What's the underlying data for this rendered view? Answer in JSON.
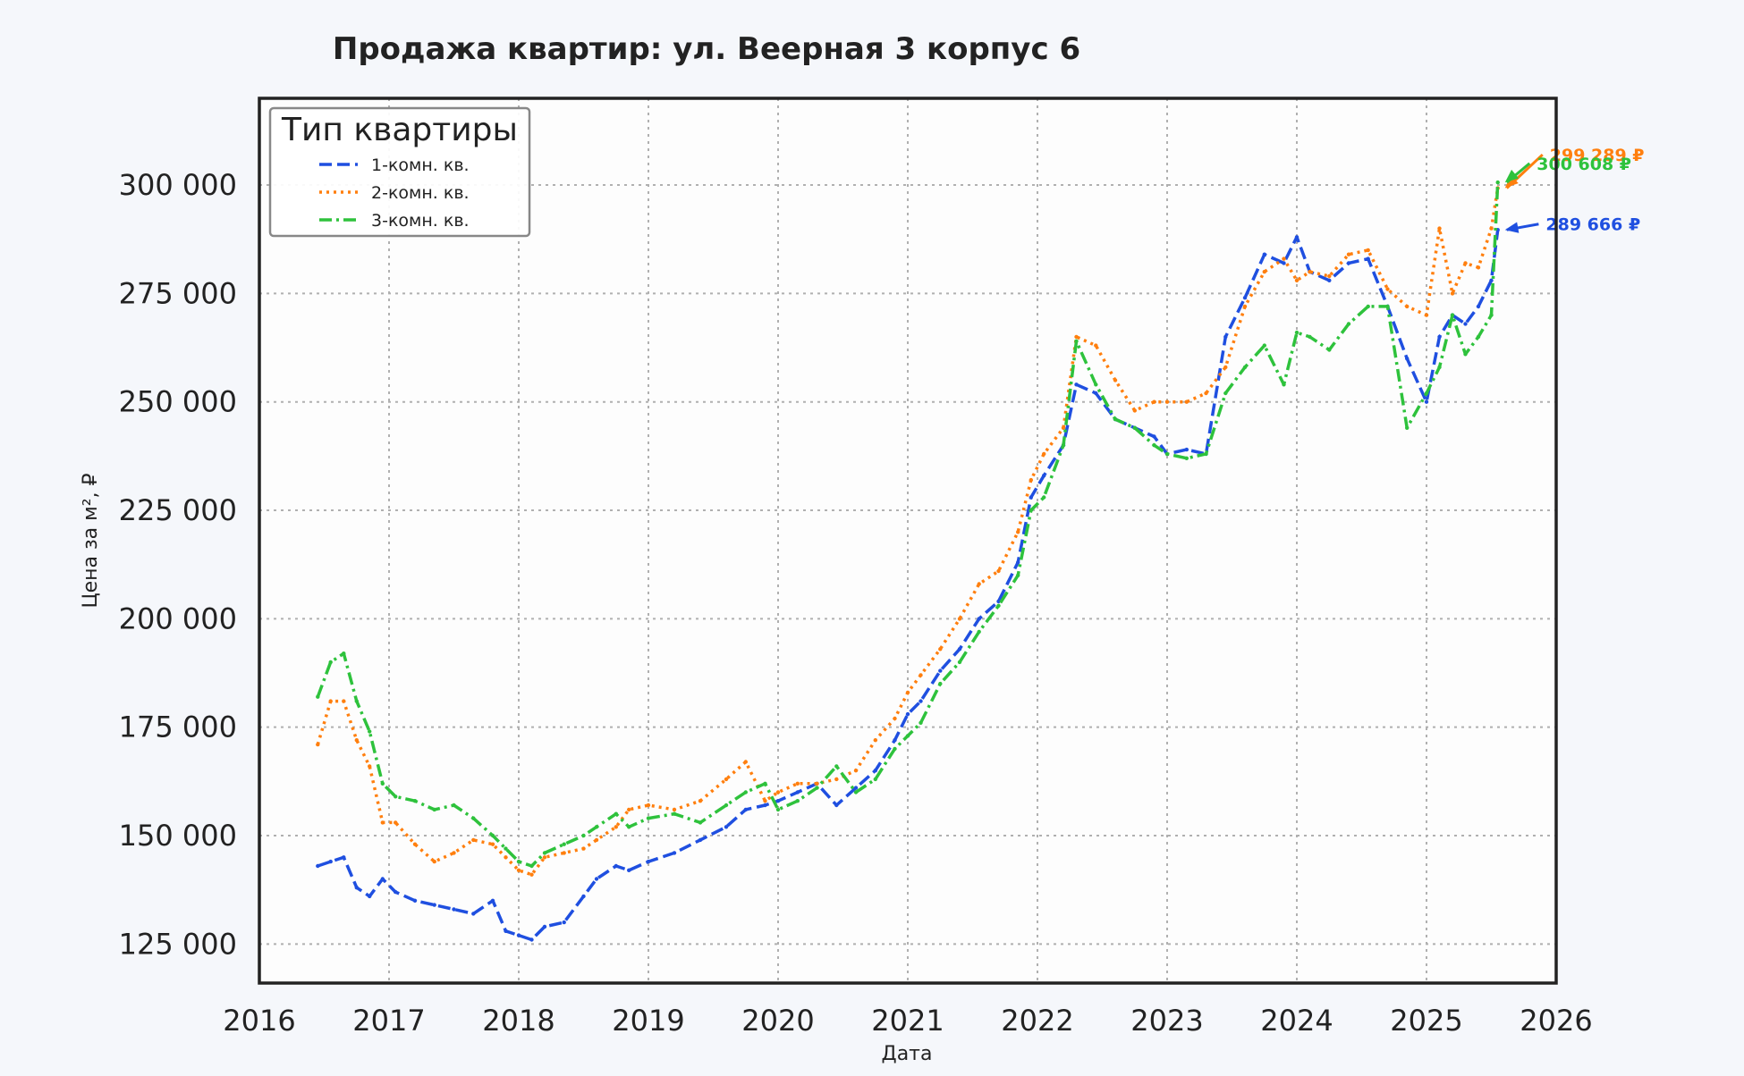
{
  "chart_data": {
    "type": "line",
    "title": "Продажа квартир: ул. Веерная 3 корпус 6",
    "xlabel": "Дата",
    "ylabel": "Цена за м², ₽",
    "xlim": [
      2016.0,
      2026.0
    ],
    "ylim": [
      116000,
      320000
    ],
    "x_ticks": [
      "2016",
      "2017",
      "2018",
      "2019",
      "2020",
      "2021",
      "2022",
      "2023",
      "2024",
      "2025",
      "2026"
    ],
    "y_ticks": [
      "125 000",
      "150 000",
      "175 000",
      "200 000",
      "225 000",
      "250 000",
      "275 000",
      "300 000"
    ],
    "y_tick_values": [
      125000,
      150000,
      175000,
      200000,
      225000,
      250000,
      275000,
      300000
    ],
    "grid": true,
    "legend": {
      "title": "Тип квартиры",
      "position": "top-left"
    },
    "series": [
      {
        "name": "1-комн. кв.",
        "color": "#1f4fe0",
        "dash": "dashed",
        "x": [
          2016.45,
          2016.55,
          2016.65,
          2016.75,
          2016.85,
          2016.95,
          2017.05,
          2017.2,
          2017.35,
          2017.5,
          2017.65,
          2017.8,
          2017.9,
          2018.0,
          2018.1,
          2018.2,
          2018.35,
          2018.5,
          2018.6,
          2018.75,
          2018.85,
          2019.0,
          2019.2,
          2019.4,
          2019.6,
          2019.75,
          2019.9,
          2020.0,
          2020.15,
          2020.3,
          2020.45,
          2020.6,
          2020.75,
          2020.9,
          2021.0,
          2021.1,
          2021.25,
          2021.4,
          2021.55,
          2021.7,
          2021.85,
          2021.95,
          2022.05,
          2022.2,
          2022.3,
          2022.45,
          2022.6,
          2022.75,
          2022.9,
          2023.0,
          2023.15,
          2023.3,
          2023.45,
          2023.6,
          2023.75,
          2023.9,
          2024.0,
          2024.1,
          2024.25,
          2024.4,
          2024.55,
          2024.7,
          2024.85,
          2025.0,
          2025.1,
          2025.2,
          2025.3,
          2025.4,
          2025.5,
          2025.55
        ],
        "y": [
          143000,
          144000,
          145000,
          138000,
          136000,
          140000,
          137000,
          135000,
          134000,
          133000,
          132000,
          135000,
          128000,
          127000,
          126000,
          129000,
          130000,
          136000,
          140000,
          143000,
          142000,
          144000,
          146000,
          149000,
          152000,
          156000,
          157000,
          158000,
          160000,
          162000,
          157000,
          161000,
          165000,
          172000,
          178000,
          181000,
          188000,
          193000,
          200000,
          204000,
          213000,
          228000,
          233000,
          240000,
          254000,
          252000,
          246000,
          244000,
          242000,
          238000,
          239000,
          238000,
          265000,
          274000,
          284000,
          282000,
          288000,
          280000,
          278000,
          282000,
          283000,
          272000,
          260000,
          250000,
          265000,
          270000,
          268000,
          272000,
          278000,
          289666
        ]
      },
      {
        "name": "2-комн. кв.",
        "color": "#ff7f0e",
        "dash": "dotted",
        "x": [
          2016.45,
          2016.55,
          2016.65,
          2016.75,
          2016.85,
          2016.95,
          2017.05,
          2017.2,
          2017.35,
          2017.5,
          2017.65,
          2017.8,
          2017.9,
          2018.0,
          2018.1,
          2018.2,
          2018.35,
          2018.5,
          2018.6,
          2018.75,
          2018.85,
          2019.0,
          2019.2,
          2019.4,
          2019.6,
          2019.75,
          2019.9,
          2020.0,
          2020.15,
          2020.3,
          2020.45,
          2020.6,
          2020.75,
          2020.9,
          2021.0,
          2021.1,
          2021.25,
          2021.4,
          2021.55,
          2021.7,
          2021.85,
          2021.95,
          2022.05,
          2022.2,
          2022.3,
          2022.45,
          2022.6,
          2022.75,
          2022.9,
          2023.0,
          2023.15,
          2023.3,
          2023.45,
          2023.6,
          2023.75,
          2023.9,
          2024.0,
          2024.1,
          2024.25,
          2024.4,
          2024.55,
          2024.7,
          2024.85,
          2025.0,
          2025.1,
          2025.2,
          2025.3,
          2025.4,
          2025.5,
          2025.55
        ],
        "y": [
          171000,
          181000,
          181000,
          172000,
          166000,
          153000,
          153000,
          148000,
          144000,
          146000,
          149000,
          148000,
          145000,
          142000,
          141000,
          145000,
          146000,
          147000,
          149000,
          152000,
          156000,
          157000,
          156000,
          158000,
          163000,
          167000,
          158000,
          160000,
          162000,
          162000,
          163000,
          165000,
          172000,
          177000,
          183000,
          187000,
          193000,
          200000,
          208000,
          211000,
          220000,
          232000,
          238000,
          244000,
          265000,
          263000,
          255000,
          248000,
          250000,
          250000,
          250000,
          252000,
          258000,
          272000,
          280000,
          283000,
          278000,
          280000,
          279000,
          284000,
          285000,
          276000,
          272000,
          270000,
          290000,
          275000,
          282000,
          281000,
          290000,
          299289
        ]
      },
      {
        "name": "3-комн. кв.",
        "color": "#2ec23c",
        "dash": "dashdot",
        "x": [
          2016.45,
          2016.55,
          2016.65,
          2016.75,
          2016.85,
          2016.95,
          2017.05,
          2017.2,
          2017.35,
          2017.5,
          2017.65,
          2017.8,
          2017.9,
          2018.0,
          2018.1,
          2018.2,
          2018.35,
          2018.5,
          2018.6,
          2018.75,
          2018.85,
          2019.0,
          2019.2,
          2019.4,
          2019.6,
          2019.75,
          2019.9,
          2020.0,
          2020.15,
          2020.3,
          2020.45,
          2020.6,
          2020.75,
          2020.9,
          2021.0,
          2021.1,
          2021.25,
          2021.4,
          2021.55,
          2021.7,
          2021.85,
          2021.95,
          2022.05,
          2022.2,
          2022.3,
          2022.45,
          2022.6,
          2022.75,
          2022.9,
          2023.0,
          2023.15,
          2023.3,
          2023.45,
          2023.6,
          2023.75,
          2023.9,
          2024.0,
          2024.1,
          2024.25,
          2024.4,
          2024.55,
          2024.7,
          2024.85,
          2025.0,
          2025.1,
          2025.2,
          2025.3,
          2025.4,
          2025.5,
          2025.55
        ],
        "y": [
          182000,
          190000,
          192000,
          181000,
          174000,
          162000,
          159000,
          158000,
          156000,
          157000,
          154000,
          150000,
          147000,
          144000,
          143000,
          146000,
          148000,
          150000,
          152000,
          155000,
          152000,
          154000,
          155000,
          153000,
          157000,
          160000,
          162000,
          156000,
          158000,
          161000,
          166000,
          160000,
          163000,
          170000,
          173000,
          176000,
          185000,
          190000,
          197000,
          203000,
          210000,
          225000,
          228000,
          240000,
          264000,
          254000,
          246000,
          244000,
          240000,
          238000,
          237000,
          238000,
          252000,
          258000,
          263000,
          254000,
          266000,
          265000,
          262000,
          268000,
          272000,
          272000,
          244000,
          252000,
          258000,
          270000,
          261000,
          265000,
          270000,
          300608
        ]
      }
    ],
    "annotations": [
      {
        "text": "299 289 ₽",
        "series": "2-комн. кв.",
        "x": 2025.55,
        "y": 299289,
        "label_x": 2025.95,
        "label_y": 307000
      },
      {
        "text": "300 608 ₽",
        "series": "3-комн. кв.",
        "x": 2025.55,
        "y": 300608,
        "label_x": 2025.85,
        "label_y": 305000
      },
      {
        "text": "289 666 ₽",
        "series": "1-комн. кв.",
        "x": 2025.55,
        "y": 289666,
        "label_x": 2025.92,
        "label_y": 291000
      }
    ]
  }
}
